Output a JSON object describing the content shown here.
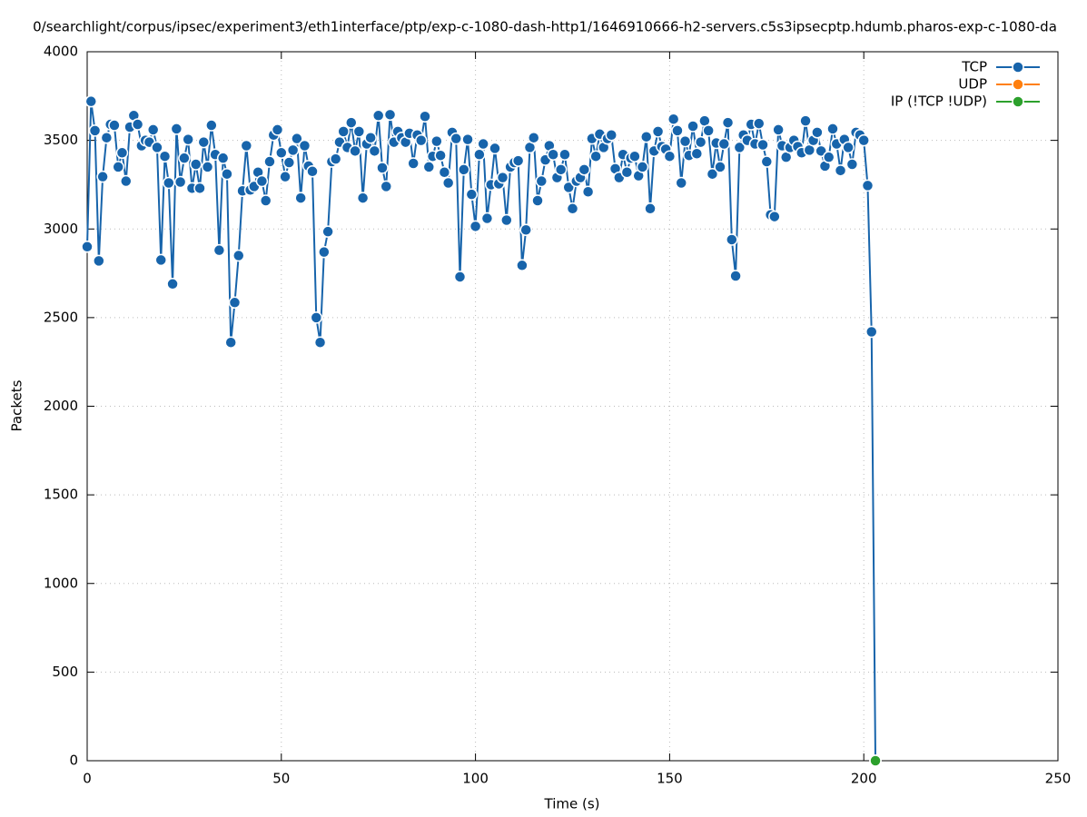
{
  "chart_data": {
    "type": "line",
    "title": "0/searchlight/corpus/ipsec/experiment3/eth1interface/ptp/exp-c-1080-dash-http1/1646910666-h2-servers.c5s3ipsecptp.hdumb.pharos-exp-c-1080-da",
    "xlabel": "Time (s)",
    "ylabel": "Packets",
    "xlim": [
      0,
      250
    ],
    "xticks": [
      0,
      50,
      100,
      150,
      200,
      250
    ],
    "ylim": [
      0,
      4000
    ],
    "yticks": [
      0,
      500,
      1000,
      1500,
      2000,
      2500,
      3000,
      3500,
      4000
    ],
    "grid": true,
    "legend": "top-right",
    "series": [
      {
        "name": "TCP",
        "color": "#1764ab",
        "x": [
          0,
          1,
          2,
          3,
          4,
          5,
          6,
          7,
          8,
          9,
          10,
          11,
          12,
          13,
          14,
          15,
          16,
          17,
          18,
          19,
          20,
          21,
          22,
          23,
          24,
          25,
          26,
          27,
          28,
          29,
          30,
          31,
          32,
          33,
          34,
          35,
          36,
          37,
          38,
          39,
          40,
          41,
          42,
          43,
          44,
          45,
          46,
          47,
          48,
          49,
          50,
          51,
          52,
          53,
          54,
          55,
          56,
          57,
          58,
          59,
          60,
          61,
          62,
          63,
          64,
          65,
          66,
          67,
          68,
          69,
          70,
          71,
          72,
          73,
          74,
          75,
          76,
          77,
          78,
          79,
          80,
          81,
          82,
          83,
          84,
          85,
          86,
          87,
          88,
          89,
          90,
          91,
          92,
          93,
          94,
          95,
          96,
          97,
          98,
          99,
          100,
          101,
          102,
          103,
          104,
          105,
          106,
          107,
          108,
          109,
          110,
          111,
          112,
          113,
          114,
          115,
          116,
          117,
          118,
          119,
          120,
          121,
          122,
          123,
          124,
          125,
          126,
          127,
          128,
          129,
          130,
          131,
          132,
          133,
          134,
          135,
          136,
          137,
          138,
          139,
          140,
          141,
          142,
          143,
          144,
          145,
          146,
          147,
          148,
          149,
          150,
          151,
          152,
          153,
          154,
          155,
          156,
          157,
          158,
          159,
          160,
          161,
          162,
          163,
          164,
          165,
          166,
          167,
          168,
          169,
          170,
          171,
          172,
          173,
          174,
          175,
          176,
          177,
          178,
          179,
          180,
          181,
          182,
          183,
          184,
          185,
          186,
          187,
          188,
          189,
          190,
          191,
          192,
          193,
          194,
          195,
          196,
          197,
          198,
          199,
          200,
          201,
          202,
          203
        ],
        "values": [
          2900,
          3720,
          3555,
          2820,
          3295,
          3515,
          3590,
          3585,
          3350,
          3430,
          3270,
          3575,
          3640,
          3590,
          3470,
          3500,
          3490,
          3560,
          3460,
          2825,
          3410,
          3260,
          2690,
          3565,
          3265,
          3400,
          3505,
          3230,
          3365,
          3230,
          3490,
          3350,
          3585,
          3420,
          2880,
          3400,
          3310,
          2360,
          2585,
          2850,
          3215,
          3470,
          3220,
          3240,
          3320,
          3270,
          3160,
          3380,
          3530,
          3560,
          3430,
          3295,
          3375,
          3445,
          3510,
          3175,
          3470,
          3355,
          3325,
          2500,
          2360,
          2870,
          2985,
          3380,
          3395,
          3490,
          3550,
          3460,
          3600,
          3440,
          3550,
          3175,
          3480,
          3515,
          3440,
          3640,
          3345,
          3240,
          3645,
          3490,
          3550,
          3515,
          3490,
          3540,
          3370,
          3530,
          3500,
          3635,
          3350,
          3410,
          3495,
          3415,
          3320,
          3260,
          3545,
          3510,
          2730,
          3335,
          3505,
          3195,
          3015,
          3420,
          3480,
          3060,
          3250,
          3455,
          3255,
          3290,
          3050,
          3350,
          3375,
          3385,
          2795,
          2995,
          3460,
          3515,
          3160,
          3270,
          3390,
          3470,
          3420,
          3290,
          3335,
          3420,
          3235,
          3115,
          3270,
          3290,
          3335,
          3210,
          3510,
          3410,
          3535,
          3460,
          3510,
          3530,
          3340,
          3290,
          3420,
          3320,
          3400,
          3410,
          3300,
          3350,
          3520,
          3115,
          3440,
          3550,
          3465,
          3450,
          3410,
          3620,
          3555,
          3260,
          3495,
          3415,
          3580,
          3425,
          3490,
          3610,
          3555,
          3310,
          3485,
          3350,
          3480,
          3600,
          2940,
          2735,
          3460,
          3530,
          3500,
          3590,
          3480,
          3595,
          3475,
          3380,
          3080,
          3070,
          3560,
          3470,
          3405,
          3460,
          3500,
          3465,
          3430,
          3610,
          3445,
          3500,
          3545,
          3440,
          3355,
          3405,
          3565,
          3480,
          3330,
          3505,
          3460,
          3365,
          3545,
          3530,
          3500,
          3245,
          2420,
          0
        ]
      },
      {
        "name": "UDP",
        "color": "#ff7f0e",
        "x": [
          203
        ],
        "values": [
          0
        ]
      },
      {
        "name": "IP (!TCP  !UDP)",
        "color": "#2ca02c",
        "x": [
          203
        ],
        "values": [
          0
        ]
      }
    ]
  }
}
